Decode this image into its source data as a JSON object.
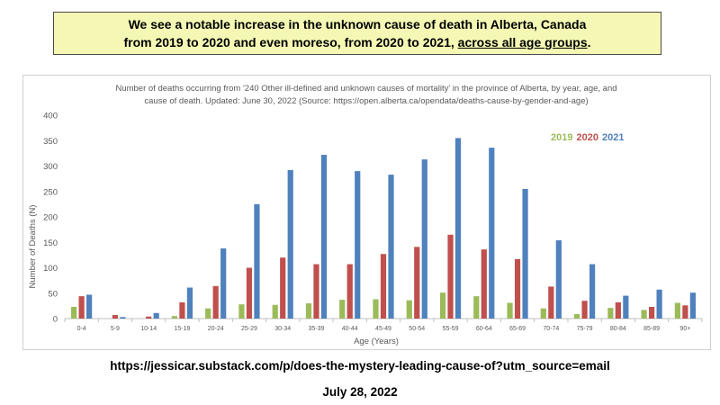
{
  "headline": {
    "line1": "We see a notable increase in the unknown cause of death in Alberta, Canada",
    "line2_prefix": "from 2019 to 2020 and even moreso, from 2020 to 2021, ",
    "line2_underlined": "across all age groups",
    "line2_suffix": "."
  },
  "footer": {
    "url": "https://jessicar.substack.com/p/does-the-mystery-leading-cause-of?utm_source=email",
    "date": "July 28, 2022"
  },
  "colors": {
    "2019": "#9bbb59",
    "2020": "#c0504d",
    "2021": "#4f81bd"
  },
  "chart_data": {
    "type": "bar",
    "title": "Number of deaths occurring from '240 Other ill-defined and unknown causes of mortality' in the province of Alberta, by year, age, and",
    "subtitle": "cause of death. Updated: June 30, 2022 (Source: https://open.alberta.ca/opendata/deaths-cause-by-gender-and-age)",
    "xlabel": "Age (Years)",
    "ylabel": "Number of Deaths (N)",
    "ylim": [
      0,
      400
    ],
    "yticks": [
      0,
      50,
      100,
      150,
      200,
      250,
      300,
      350,
      400
    ],
    "grid": false,
    "legend_position": "top-right",
    "categories": [
      "0-4",
      "5-9",
      "10-14",
      "15-19",
      "20-24",
      "25-29",
      "30-34",
      "35-39",
      "40-44",
      "45-49",
      "50-54",
      "55-59",
      "60-64",
      "65-69",
      "70-74",
      "75-79",
      "80-84",
      "85-89",
      "90+"
    ],
    "series": [
      {
        "name": "2019",
        "values": [
          23,
          0,
          0,
          5,
          20,
          28,
          27,
          30,
          37,
          38,
          36,
          51,
          44,
          31,
          20,
          9,
          21,
          17,
          31
        ]
      },
      {
        "name": "2020",
        "values": [
          44,
          7,
          4,
          32,
          64,
          100,
          120,
          107,
          107,
          127,
          141,
          165,
          136,
          117,
          63,
          35,
          32,
          23,
          26
        ]
      },
      {
        "name": "2021",
        "values": [
          47,
          3,
          11,
          61,
          138,
          225,
          292,
          322,
          290,
          283,
          313,
          355,
          336,
          255,
          154,
          107,
          45,
          57,
          51
        ]
      }
    ]
  }
}
